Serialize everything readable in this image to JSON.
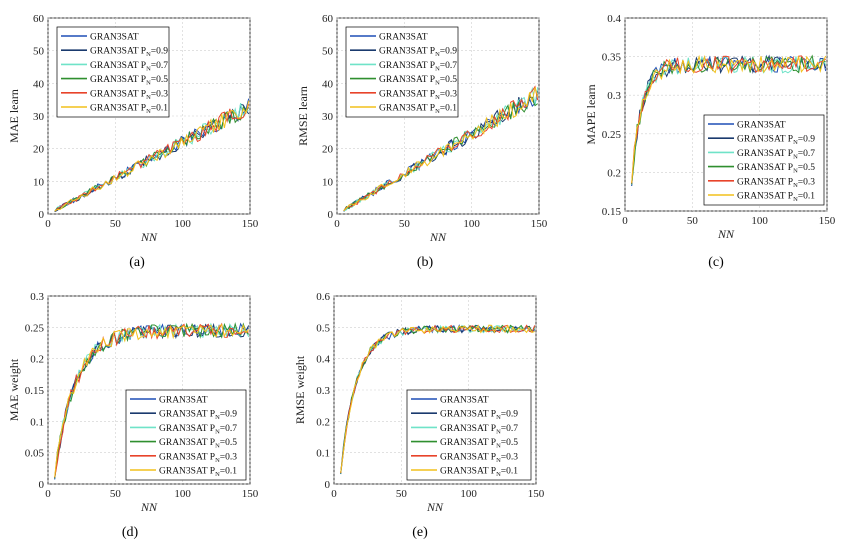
{
  "legend_base": [
    "GRAN3SAT",
    "GRAN3SAT P",
    "GRAN3SAT P",
    "GRAN3SAT P",
    "GRAN3SAT P",
    "GRAN3SAT P"
  ],
  "legend_sub": [
    "",
    "N",
    "N",
    "N",
    "N",
    "N"
  ],
  "legend_suffix": [
    "",
    "=0.9",
    "=0.7",
    "=0.5",
    "=0.3",
    "=0.1"
  ],
  "series_colors": [
    "#1f4fb5",
    "#1a3a6e",
    "#6fe3c8",
    "#2f8f2f",
    "#e8432a",
    "#f2c11c"
  ],
  "chart_data": [
    {
      "id": "a",
      "panel_label": "(a)",
      "type": "line",
      "xlabel": "NN",
      "ylabel": "MAE learn",
      "xlim": [
        0,
        150
      ],
      "ylim": [
        0,
        60
      ],
      "xticks": [
        "0",
        "50",
        "100",
        "150"
      ],
      "yticks": [
        "0",
        "10",
        "20",
        "30",
        "40",
        "50",
        "60"
      ],
      "legend": "top-left",
      "model": {
        "kind": "linear",
        "slope": 0.22,
        "noise": 1.6
      },
      "series": [
        {
          "name": "GRAN3SAT"
        },
        {
          "name": "GRAN3SAT PN=0.9"
        },
        {
          "name": "GRAN3SAT PN=0.7"
        },
        {
          "name": "GRAN3SAT PN=0.5"
        },
        {
          "name": "GRAN3SAT PN=0.3"
        },
        {
          "name": "GRAN3SAT PN=0.1"
        }
      ]
    },
    {
      "id": "b",
      "panel_label": "(b)",
      "type": "line",
      "xlabel": "NN",
      "ylabel": "RMSE learn",
      "xlim": [
        0,
        150
      ],
      "ylim": [
        0,
        60
      ],
      "xticks": [
        "0",
        "50",
        "100",
        "150"
      ],
      "yticks": [
        "0",
        "10",
        "20",
        "30",
        "40",
        "50",
        "60"
      ],
      "legend": "top-left",
      "model": {
        "kind": "linear",
        "slope": 0.245,
        "noise": 1.7
      },
      "series": [
        {
          "name": "GRAN3SAT"
        },
        {
          "name": "GRAN3SAT PN=0.9"
        },
        {
          "name": "GRAN3SAT PN=0.7"
        },
        {
          "name": "GRAN3SAT PN=0.5"
        },
        {
          "name": "GRAN3SAT PN=0.3"
        },
        {
          "name": "GRAN3SAT PN=0.1"
        }
      ]
    },
    {
      "id": "c",
      "panel_label": "(c)",
      "type": "line",
      "xlabel": "NN",
      "ylabel": "MAPE learn",
      "xlim": [
        0,
        150
      ],
      "ylim": [
        0.15,
        0.4
      ],
      "xticks": [
        "0",
        "50",
        "100",
        "150"
      ],
      "yticks": [
        "0.15",
        "0.2",
        "0.25",
        "0.3",
        "0.35",
        "0.4"
      ],
      "legend": "bottom-right",
      "model": {
        "kind": "saturate",
        "start": 0.17,
        "top": 0.34,
        "rate": 0.13,
        "noise": 0.011
      },
      "series": [
        {
          "name": "GRAN3SAT"
        },
        {
          "name": "GRAN3SAT PN=0.9"
        },
        {
          "name": "GRAN3SAT PN=0.7"
        },
        {
          "name": "GRAN3SAT PN=0.5"
        },
        {
          "name": "GRAN3SAT PN=0.3"
        },
        {
          "name": "GRAN3SAT PN=0.1"
        }
      ]
    },
    {
      "id": "d",
      "panel_label": "(d)",
      "type": "line",
      "xlabel": "NN",
      "ylabel": "MAE weight",
      "xlim": [
        0,
        150
      ],
      "ylim": [
        0,
        0.3
      ],
      "xticks": [
        "0",
        "50",
        "100",
        "150"
      ],
      "yticks": [
        "0",
        "0.05",
        "0.1",
        "0.15",
        "0.2",
        "0.25",
        "0.3"
      ],
      "legend": "bottom-right",
      "model": {
        "kind": "saturate",
        "start": 0.0,
        "top": 0.245,
        "rate": 0.065,
        "noise": 0.011
      },
      "series": [
        {
          "name": "GRAN3SAT"
        },
        {
          "name": "GRAN3SAT PN=0.9"
        },
        {
          "name": "GRAN3SAT PN=0.7"
        },
        {
          "name": "GRAN3SAT PN=0.5"
        },
        {
          "name": "GRAN3SAT PN=0.3"
        },
        {
          "name": "GRAN3SAT PN=0.1"
        }
      ]
    },
    {
      "id": "e",
      "panel_label": "(e)",
      "type": "line",
      "xlabel": "NN",
      "ylabel": "RMSE weight",
      "xlim": [
        0,
        150
      ],
      "ylim": [
        0,
        0.6
      ],
      "xticks": [
        "0",
        "50",
        "100",
        "150"
      ],
      "yticks": [
        "0",
        "0.1",
        "0.2",
        "0.3",
        "0.4",
        "0.5",
        "0.6"
      ],
      "legend": "bottom-right",
      "model": {
        "kind": "saturate",
        "start": 0.0,
        "top": 0.495,
        "rate": 0.085,
        "noise": 0.012
      },
      "series": [
        {
          "name": "GRAN3SAT"
        },
        {
          "name": "GRAN3SAT PN=0.9"
        },
        {
          "name": "GRAN3SAT PN=0.7"
        },
        {
          "name": "GRAN3SAT PN=0.5"
        },
        {
          "name": "GRAN3SAT PN=0.3"
        },
        {
          "name": "GRAN3SAT PN=0.1"
        }
      ]
    }
  ]
}
